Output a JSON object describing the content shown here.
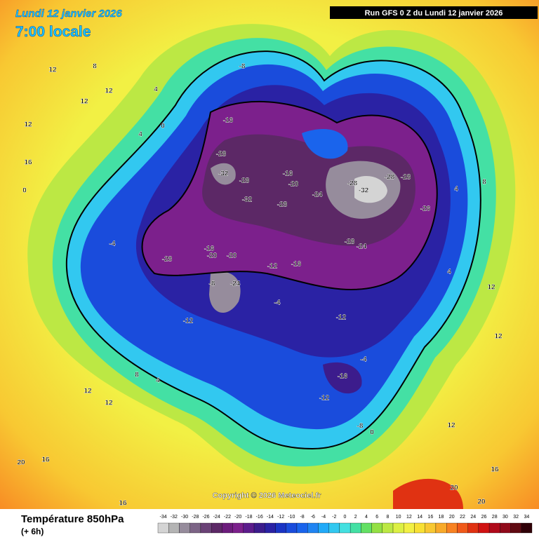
{
  "header": {
    "date": "Lundi 12 janvier 2026",
    "time": "7:00 locale",
    "run": "Run GFS 0 Z du Lundi 12 janvier 2026"
  },
  "footer": {
    "title": "Température 850hPa",
    "step": "(+ 6h)",
    "copyright": "Copyright © 2026 Meteociel.fr"
  },
  "legend": {
    "values": [
      -34,
      -32,
      -30,
      -28,
      -26,
      -24,
      -22,
      -20,
      -18,
      -16,
      -14,
      -12,
      -10,
      -8,
      -6,
      -4,
      -2,
      0,
      2,
      4,
      6,
      8,
      10,
      12,
      14,
      16,
      18,
      20,
      22,
      24,
      26,
      28,
      30,
      32,
      34
    ],
    "colors": [
      "#d4d4d4",
      "#b4b4b4",
      "#968c9c",
      "#7c6486",
      "#6a4276",
      "#5c2866",
      "#6c1c7c",
      "#7c208c",
      "#5c1c8c",
      "#3c1c8c",
      "#2a22a4",
      "#1a34c4",
      "#1a4cdc",
      "#1a64ec",
      "#2084f2",
      "#22aaf8",
      "#32c8f0",
      "#44e0e0",
      "#44e0a4",
      "#64e064",
      "#94e044",
      "#bce844",
      "#dcf044",
      "#f2f044",
      "#f8e034",
      "#f8c832",
      "#f8aa2a",
      "#f88222",
      "#f05a1a",
      "#e03212",
      "#d01212",
      "#b00a1a",
      "#900a1a",
      "#600a12",
      "#300008"
    ]
  },
  "map": {
    "labels": [
      12,
      12,
      12,
      16,
      12,
      8,
      4,
      4,
      0,
      0,
      -4,
      -8,
      -16,
      -28,
      -32,
      -28,
      -32,
      -28,
      -16,
      -20,
      -24,
      -28,
      -32,
      -28,
      -28,
      -26,
      -28,
      -24,
      -16,
      -20,
      -28,
      -24,
      -20,
      -16,
      -12,
      -8,
      -4,
      -12,
      -12,
      -16,
      -12,
      -8,
      -4,
      0,
      4,
      4,
      8,
      12,
      12,
      20,
      16,
      20,
      20,
      16,
      12,
      12,
      8,
      4,
      12,
      16
    ]
  }
}
